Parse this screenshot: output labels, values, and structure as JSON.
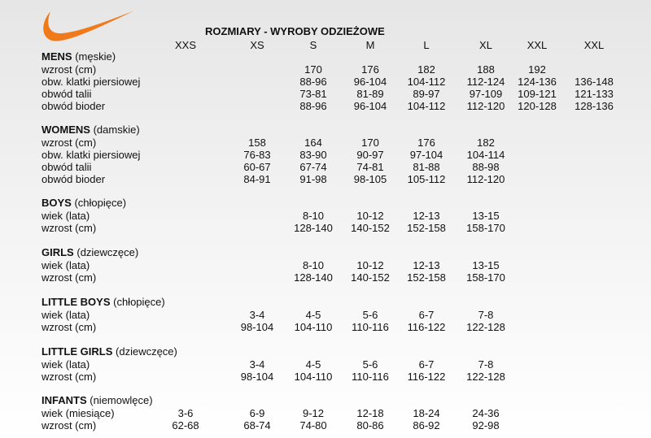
{
  "title": "ROZMIARY - WYROBY ODZIEŻOWE",
  "logo": {
    "icon": "swoosh-logo",
    "color": "#f07a1a"
  },
  "sizes": [
    "XXS",
    "XS",
    "S",
    "M",
    "L",
    "XL",
    "XXL",
    "XXL"
  ],
  "sections": [
    {
      "name": "MENS",
      "sub": "(męskie)",
      "rows": [
        {
          "label": "wzrost (cm)",
          "values": [
            "",
            "",
            "170",
            "176",
            "182",
            "188",
            "192",
            ""
          ]
        },
        {
          "label": "obw. klatki piersiowej",
          "values": [
            "",
            "",
            "88-96",
            "96-104",
            "104-112",
            "112-124",
            "124-136",
            "136-148"
          ]
        },
        {
          "label": "obwód talii",
          "values": [
            "",
            "",
            "73-81",
            "81-89",
            "89-97",
            "97-109",
            "109-121",
            "121-133"
          ]
        },
        {
          "label": "obwód bioder",
          "values": [
            "",
            "",
            "88-96",
            "96-104",
            "104-112",
            "112-120",
            "120-128",
            "128-136"
          ]
        }
      ]
    },
    {
      "name": "WOMENS",
      "sub": "(damskie)",
      "rows": [
        {
          "label": "wzrost (cm)",
          "values": [
            "",
            "158",
            "164",
            "170",
            "176",
            "182",
            "",
            ""
          ]
        },
        {
          "label": "obw. klatki piersiowej",
          "values": [
            "",
            "76-83",
            "83-90",
            "90-97",
            "97-104",
            "104-114",
            "",
            ""
          ]
        },
        {
          "label": "obwód talii",
          "values": [
            "",
            "60-67",
            "67-74",
            "74-81",
            "81-88",
            "88-98",
            "",
            ""
          ]
        },
        {
          "label": "obwód bioder",
          "values": [
            "",
            "84-91",
            "91-98",
            "98-105",
            "105-112",
            "112-120",
            "",
            ""
          ]
        }
      ]
    },
    {
      "name": "BOYS",
      "sub": "(chłopięce)",
      "rows": [
        {
          "label": "wiek (lata)",
          "values": [
            "",
            "",
            "8-10",
            "10-12",
            "12-13",
            "13-15",
            "",
            ""
          ]
        },
        {
          "label": "wzrost (cm)",
          "values": [
            "",
            "",
            "128-140",
            "140-152",
            "152-158",
            "158-170",
            "",
            ""
          ]
        }
      ]
    },
    {
      "name": "GIRLS",
      "sub": "(dziewczęce)",
      "rows": [
        {
          "label": "wiek (lata)",
          "values": [
            "",
            "",
            "8-10",
            "10-12",
            "12-13",
            "13-15",
            "",
            ""
          ]
        },
        {
          "label": "wzrost (cm)",
          "values": [
            "",
            "",
            "128-140",
            "140-152",
            "152-158",
            "158-170",
            "",
            ""
          ]
        }
      ]
    },
    {
      "name": "LITTLE BOYS",
      "sub": "(chłopięce)",
      "rows": [
        {
          "label": "wiek (lata)",
          "values": [
            "",
            "3-4",
            "4-5",
            "5-6",
            "6-7",
            "7-8",
            "",
            ""
          ]
        },
        {
          "label": "wzrost (cm)",
          "values": [
            "",
            "98-104",
            "104-110",
            "110-116",
            "116-122",
            "122-128",
            "",
            ""
          ]
        }
      ]
    },
    {
      "name": "LITTLE GIRLS",
      "sub": "(dziewczęce)",
      "rows": [
        {
          "label": "wiek (lata)",
          "values": [
            "",
            "3-4",
            "4-5",
            "5-6",
            "6-7",
            "7-8",
            "",
            ""
          ]
        },
        {
          "label": "wzrost (cm)",
          "values": [
            "",
            "98-104",
            "104-110",
            "110-116",
            "116-122",
            "122-128",
            "",
            ""
          ]
        }
      ]
    },
    {
      "name": "INFANTS",
      "sub": "(niemowlęce)",
      "rows": [
        {
          "label": "wiek (miesiące)",
          "values": [
            "3-6",
            "6-9",
            "9-12",
            "12-18",
            "18-24",
            "24-36",
            "",
            ""
          ]
        },
        {
          "label": "wzrost (cm)",
          "values": [
            "62-68",
            "68-74",
            "74-80",
            "80-86",
            "86-92",
            "92-98",
            "",
            ""
          ]
        }
      ]
    }
  ]
}
